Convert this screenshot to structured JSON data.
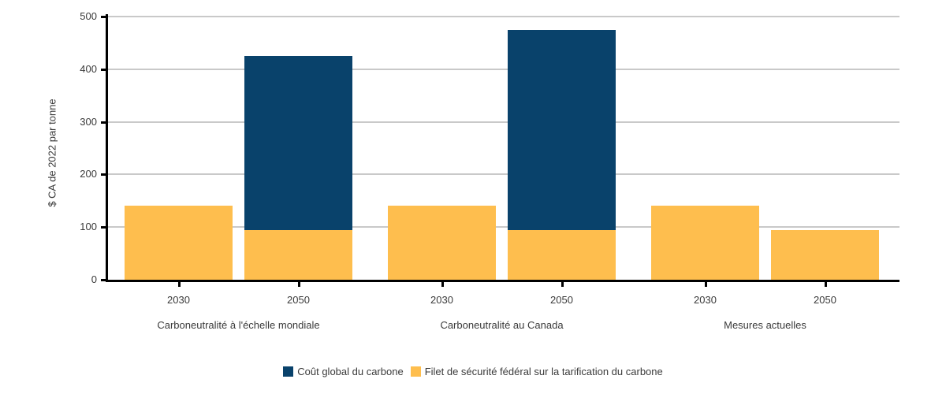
{
  "chart_data": {
    "type": "bar",
    "stacked": true,
    "title": "",
    "ylabel": "$ CA de 2022 par tonne",
    "xlabel": "",
    "ylim": [
      0,
      500
    ],
    "yticks": [
      0,
      100,
      200,
      300,
      400,
      500
    ],
    "grid": "horizontal",
    "legend_position": "bottom",
    "categories": [
      "2030",
      "2050",
      "2030",
      "2050",
      "2030",
      "2050"
    ],
    "group_labels": [
      "Carboneutralité à l'échelle mondiale",
      "Carboneutralité au Canada",
      "Mesures actuelles"
    ],
    "series": [
      {
        "name": "Coût global du carbone",
        "color": "#09426B",
        "values": [
          0,
          330,
          0,
          380,
          0,
          0
        ]
      },
      {
        "name": "Filet de sécurité fédéral sur la tarification du carbone",
        "color": "#FEBE4E",
        "values": [
          140,
          95,
          140,
          95,
          140,
          95
        ]
      }
    ],
    "bar_top_totals": [
      140,
      425,
      140,
      475,
      140,
      95
    ]
  },
  "colors": {
    "grid": "#C9C9C9",
    "axis": "#000000",
    "text": "#3A3A3A",
    "background": "#FFFFFF"
  }
}
